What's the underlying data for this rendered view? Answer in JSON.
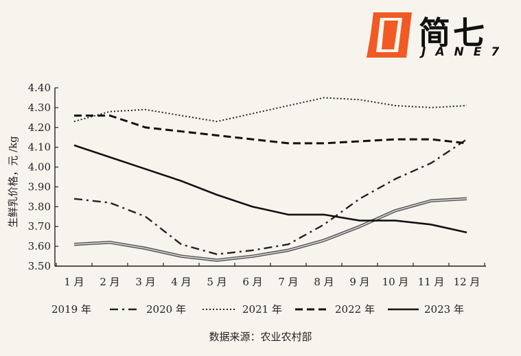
{
  "logo": {
    "word": "简七",
    "sub": "JANE7",
    "accent": "#f15a24"
  },
  "source_note": "数据来源：农业农村部",
  "chart_data": {
    "type": "line",
    "title": "",
    "xlabel": "",
    "ylabel": "生鲜乳价格，元 /kg",
    "ylim": [
      3.5,
      4.4
    ],
    "yticks": [
      "3.50",
      "3.60",
      "3.70",
      "3.80",
      "3.90",
      "4.00",
      "4.10",
      "4.20",
      "4.30",
      "4.40"
    ],
    "categories": [
      "1 月",
      "2 月",
      "3 月",
      "4 月",
      "5 月",
      "6 月",
      "7 月",
      "8 月",
      "9 月",
      "10 月",
      "11 月",
      "12 月"
    ],
    "legend_position": "bottom",
    "grid": false,
    "series": [
      {
        "name": "2019 年",
        "style": "double",
        "color": "#555555",
        "values": [
          3.61,
          3.62,
          3.59,
          3.55,
          3.53,
          3.55,
          3.58,
          3.63,
          3.7,
          3.78,
          3.83,
          3.84
        ]
      },
      {
        "name": "2020 年",
        "style": "dashdot",
        "color": "#222222",
        "values": [
          3.84,
          3.82,
          3.75,
          3.61,
          3.56,
          3.58,
          3.61,
          3.71,
          3.84,
          3.94,
          4.02,
          4.14
        ]
      },
      {
        "name": "2021 年",
        "style": "dotted",
        "color": "#222222",
        "values": [
          4.23,
          4.28,
          4.29,
          4.26,
          4.23,
          4.27,
          4.31,
          4.35,
          4.34,
          4.31,
          4.3,
          4.31
        ]
      },
      {
        "name": "2022 年",
        "style": "dashed",
        "color": "#111111",
        "values": [
          4.26,
          4.26,
          4.2,
          4.18,
          4.16,
          4.14,
          4.12,
          4.12,
          4.13,
          4.14,
          4.14,
          4.12
        ]
      },
      {
        "name": "2023 年",
        "style": "solid",
        "color": "#111111",
        "values": [
          4.11,
          4.05,
          3.99,
          3.93,
          3.86,
          3.8,
          3.76,
          3.76,
          3.73,
          3.73,
          3.71,
          3.67
        ]
      }
    ]
  }
}
